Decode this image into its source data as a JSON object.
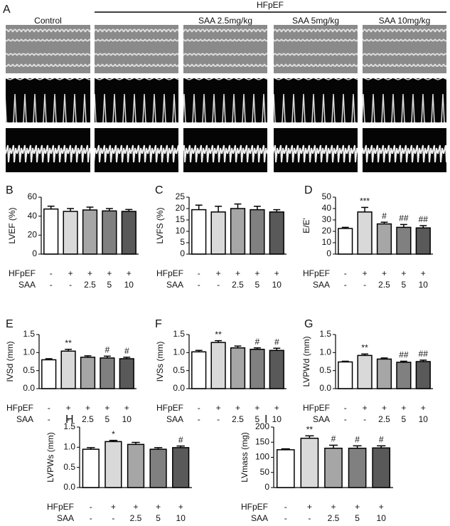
{
  "panel_a": {
    "panel": "A",
    "group_label": "HFpEF",
    "columns": [
      "Control",
      "",
      "SAA 2.5mg/kg",
      "SAA 5mg/kg",
      "SAA 10mg/kg"
    ]
  },
  "chart_data": [
    {
      "type": "bar",
      "panel": "B",
      "ylabel": "LVEF (%)",
      "values": [
        47.5,
        45,
        46.5,
        45.5,
        45
      ],
      "errors": [
        3,
        3,
        3,
        2.5,
        2
      ],
      "annotations": [
        null,
        null,
        null,
        null,
        null
      ],
      "colors": [
        "#ffffff",
        "#d9d9d9",
        "#a6a6a6",
        "#808080",
        "#595959"
      ],
      "ylim": [
        0,
        60
      ],
      "yticks": [
        0,
        20,
        40,
        60
      ],
      "row_labels": [
        "HFpEF",
        "SAA"
      ],
      "rows": [
        [
          "-",
          "+",
          "+",
          "+",
          "+"
        ],
        [
          "-",
          "-",
          "2.5",
          "5",
          "10"
        ]
      ]
    },
    {
      "type": "bar",
      "panel": "C",
      "ylabel": "LVFS (%)",
      "values": [
        19.5,
        18.5,
        20,
        19.5,
        18.5
      ],
      "errors": [
        2,
        2.5,
        2,
        1.5,
        1
      ],
      "annotations": [
        null,
        null,
        null,
        null,
        null
      ],
      "colors": [
        "#ffffff",
        "#d9d9d9",
        "#a6a6a6",
        "#808080",
        "#595959"
      ],
      "ylim": [
        0,
        25
      ],
      "yticks": [
        0,
        5,
        10,
        15,
        20,
        25
      ],
      "row_labels": [
        "HFpEF",
        "SAA"
      ],
      "rows": [
        [
          "-",
          "+",
          "+",
          "+",
          "+"
        ],
        [
          "-",
          "-",
          "2.5",
          "5",
          "10"
        ]
      ]
    },
    {
      "type": "bar",
      "panel": "D",
      "ylabel": "E/E'",
      "values": [
        22.5,
        37,
        26.5,
        23.5,
        23
      ],
      "errors": [
        1,
        4,
        1.5,
        2.5,
        2
      ],
      "annotations": [
        null,
        "***",
        "#",
        "##",
        "##"
      ],
      "colors": [
        "#ffffff",
        "#d9d9d9",
        "#a6a6a6",
        "#808080",
        "#595959"
      ],
      "ylim": [
        0,
        50
      ],
      "yticks": [
        0,
        10,
        20,
        30,
        40,
        50
      ],
      "row_labels": [
        "HFpEF",
        "SAA"
      ],
      "rows": [
        [
          "-",
          "+",
          "+",
          "+",
          "+"
        ],
        [
          "-",
          "-",
          "2.5",
          "5",
          "10"
        ]
      ]
    },
    {
      "type": "bar",
      "panel": "E",
      "ylabel": "IVSd (mm)",
      "values": [
        0.8,
        1.04,
        0.87,
        0.85,
        0.83
      ],
      "errors": [
        0.03,
        0.05,
        0.04,
        0.05,
        0.04
      ],
      "annotations": [
        null,
        "**",
        null,
        "#",
        "#"
      ],
      "colors": [
        "#ffffff",
        "#d9d9d9",
        "#a6a6a6",
        "#808080",
        "#595959"
      ],
      "ylim": [
        0,
        1.5
      ],
      "yticks": [
        {
          "value": 0,
          "label": "0.0"
        },
        {
          "value": 0.5,
          "label": "0.5"
        },
        {
          "value": 1,
          "label": "1.0"
        },
        {
          "value": 1.5,
          "label": "1.5"
        }
      ],
      "row_labels": [
        "HFpEF",
        "SAA"
      ],
      "rows": [
        [
          "-",
          "+",
          "+",
          "+",
          "+"
        ],
        [
          "-",
          "-",
          "2.5",
          "5",
          "10"
        ]
      ]
    },
    {
      "type": "bar",
      "panel": "F",
      "ylabel": "IVSs (mm)",
      "values": [
        1.02,
        1.28,
        1.13,
        1.09,
        1.06
      ],
      "errors": [
        0.04,
        0.05,
        0.05,
        0.04,
        0.06
      ],
      "annotations": [
        null,
        "**",
        null,
        "#",
        "#"
      ],
      "colors": [
        "#ffffff",
        "#d9d9d9",
        "#a6a6a6",
        "#808080",
        "#595959"
      ],
      "ylim": [
        0,
        1.5
      ],
      "yticks": [
        {
          "value": 0,
          "label": "0.0"
        },
        {
          "value": 0.5,
          "label": "0.5"
        },
        {
          "value": 1,
          "label": "1.0"
        },
        {
          "value": 1.5,
          "label": "1.5"
        }
      ],
      "row_labels": [
        "HFpEF",
        "SAA"
      ],
      "rows": [
        [
          "-",
          "+",
          "+",
          "+",
          "+"
        ],
        [
          "-",
          "-",
          "2.5",
          "5",
          "10"
        ]
      ]
    },
    {
      "type": "bar",
      "panel": "G",
      "ylabel": "LVPWd (mm)",
      "values": [
        0.74,
        0.92,
        0.82,
        0.73,
        0.75
      ],
      "errors": [
        0.02,
        0.04,
        0.03,
        0.03,
        0.04
      ],
      "annotations": [
        null,
        "**",
        null,
        "##",
        "##"
      ],
      "colors": [
        "#ffffff",
        "#d9d9d9",
        "#a6a6a6",
        "#808080",
        "#595959"
      ],
      "ylim": [
        0,
        1.5
      ],
      "yticks": [
        {
          "value": 0,
          "label": "0.0"
        },
        {
          "value": 0.5,
          "label": "0.5"
        },
        {
          "value": 1,
          "label": "1.0"
        },
        {
          "value": 1.5,
          "label": "1.5"
        }
      ],
      "row_labels": [
        "HFpEF",
        "SAA"
      ],
      "rows": [
        [
          "-",
          "+",
          "+",
          "+",
          "+"
        ],
        [
          "-",
          "-",
          "2.5",
          "5",
          "10"
        ]
      ]
    },
    {
      "type": "bar",
      "panel": "H",
      "ylabel": "LVPWs (mm)",
      "values": [
        0.95,
        1.14,
        1.07,
        0.95,
        0.99
      ],
      "errors": [
        0.04,
        0.03,
        0.05,
        0.04,
        0.04
      ],
      "annotations": [
        null,
        "*",
        null,
        null,
        "#"
      ],
      "colors": [
        "#ffffff",
        "#d9d9d9",
        "#a6a6a6",
        "#808080",
        "#595959"
      ],
      "ylim": [
        0,
        1.5
      ],
      "yticks": [
        {
          "value": 0,
          "label": "0.0"
        },
        {
          "value": 0.5,
          "label": "0.5"
        },
        {
          "value": 1,
          "label": "1.0"
        },
        {
          "value": 1.5,
          "label": "1.5"
        }
      ],
      "row_labels": [
        "HFpEF",
        "SAA"
      ],
      "rows": [
        [
          "-",
          "+",
          "+",
          "+",
          "+"
        ],
        [
          "-",
          "-",
          "2.5",
          "5",
          "10"
        ]
      ]
    },
    {
      "type": "bar",
      "panel": "I",
      "ylabel": "LVmass (mg)",
      "values": [
        125,
        163,
        130,
        130,
        131
      ],
      "errors": [
        3,
        8,
        10,
        8,
        7
      ],
      "annotations": [
        null,
        "**",
        "#",
        "#",
        "#"
      ],
      "colors": [
        "#ffffff",
        "#d9d9d9",
        "#a6a6a6",
        "#808080",
        "#595959"
      ],
      "ylim": [
        0,
        200
      ],
      "yticks": [
        0,
        50,
        100,
        150,
        200
      ],
      "row_labels": [
        "HFpEF",
        "SAA"
      ],
      "rows": [
        [
          "-",
          "+",
          "+",
          "+",
          "+"
        ],
        [
          "-",
          "-",
          "2.5",
          "5",
          "10"
        ]
      ]
    }
  ]
}
